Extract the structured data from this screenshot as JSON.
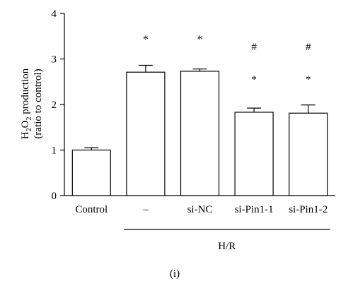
{
  "chart_data": {
    "type": "bar",
    "categories": [
      "Control",
      "–",
      "si-NC",
      "si-Pin1-1",
      "si-Pin1-2"
    ],
    "values": [
      1.0,
      2.71,
      2.73,
      1.83,
      1.81
    ],
    "errors": [
      0.05,
      0.15,
      0.05,
      0.09,
      0.18
    ],
    "ylim": [
      0,
      4
    ],
    "yticks": [
      0,
      1,
      2,
      3,
      4
    ],
    "ylabel_line1_prefix": "H",
    "ylabel_line1_sub1": "2",
    "ylabel_line1_mid": "O",
    "ylabel_line1_sub2": "2",
    "ylabel_line1_suffix": " production",
    "ylabel_line2": "(ratio to control)",
    "group_label": "H/R",
    "group_members": [
      "–",
      "si-NC",
      "si-Pin1-1",
      "si-Pin1-2"
    ],
    "annotations": [
      {
        "category": "–",
        "marks": [
          "*"
        ]
      },
      {
        "category": "si-NC",
        "marks": [
          "*"
        ]
      },
      {
        "category": "si-Pin1-1",
        "marks": [
          "#",
          "*"
        ]
      },
      {
        "category": "si-Pin1-2",
        "marks": [
          "#",
          "*"
        ]
      }
    ],
    "panel_label": "(i)",
    "bar_fill": "#ffffff",
    "bar_stroke": "#000000"
  }
}
